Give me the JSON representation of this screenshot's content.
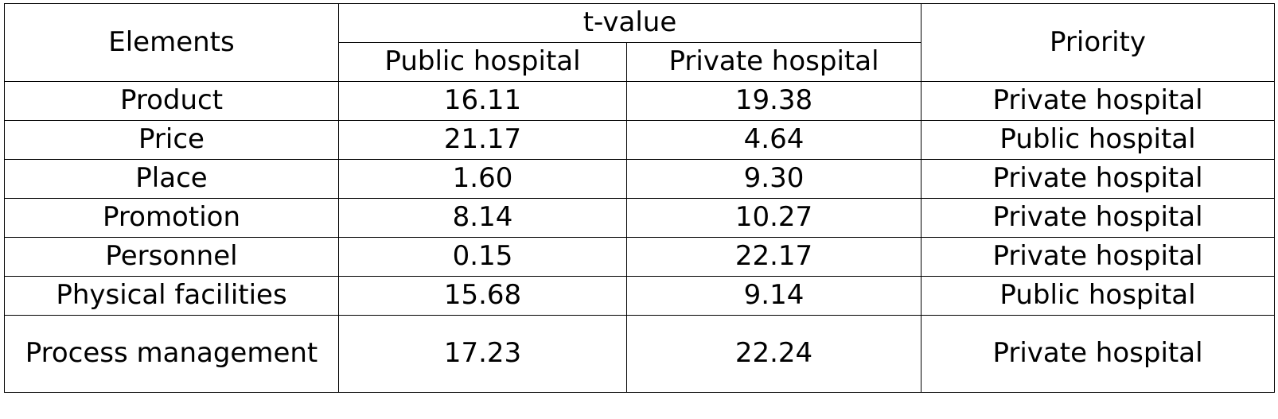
{
  "title_fragment": "",
  "table": {
    "headers": {
      "elements": "Elements",
      "t_value": "t-value",
      "public_hospital": "Public hospital",
      "private_hospital": "Private hospital",
      "priority": "Priority"
    },
    "rows": [
      {
        "element": "Product",
        "public": "16.11",
        "private": "19.38",
        "priority": "Private hospital"
      },
      {
        "element": "Price",
        "public": "21.17",
        "private": "4.64",
        "priority": "Public hospital"
      },
      {
        "element": "Place",
        "public": "1.60",
        "private": "9.30",
        "priority": "Private hospital"
      },
      {
        "element": "Promotion",
        "public": "8.14",
        "private": "10.27",
        "priority": "Private hospital"
      },
      {
        "element": "Personnel",
        "public": "0.15",
        "private": "22.17",
        "priority": "Private hospital"
      },
      {
        "element": "Physical facilities",
        "public": "15.68",
        "private": "9.14",
        "priority": "Public hospital"
      },
      {
        "element": "Process management",
        "public": "17.23",
        "private": "22.24",
        "priority": "Private hospital"
      }
    ]
  }
}
